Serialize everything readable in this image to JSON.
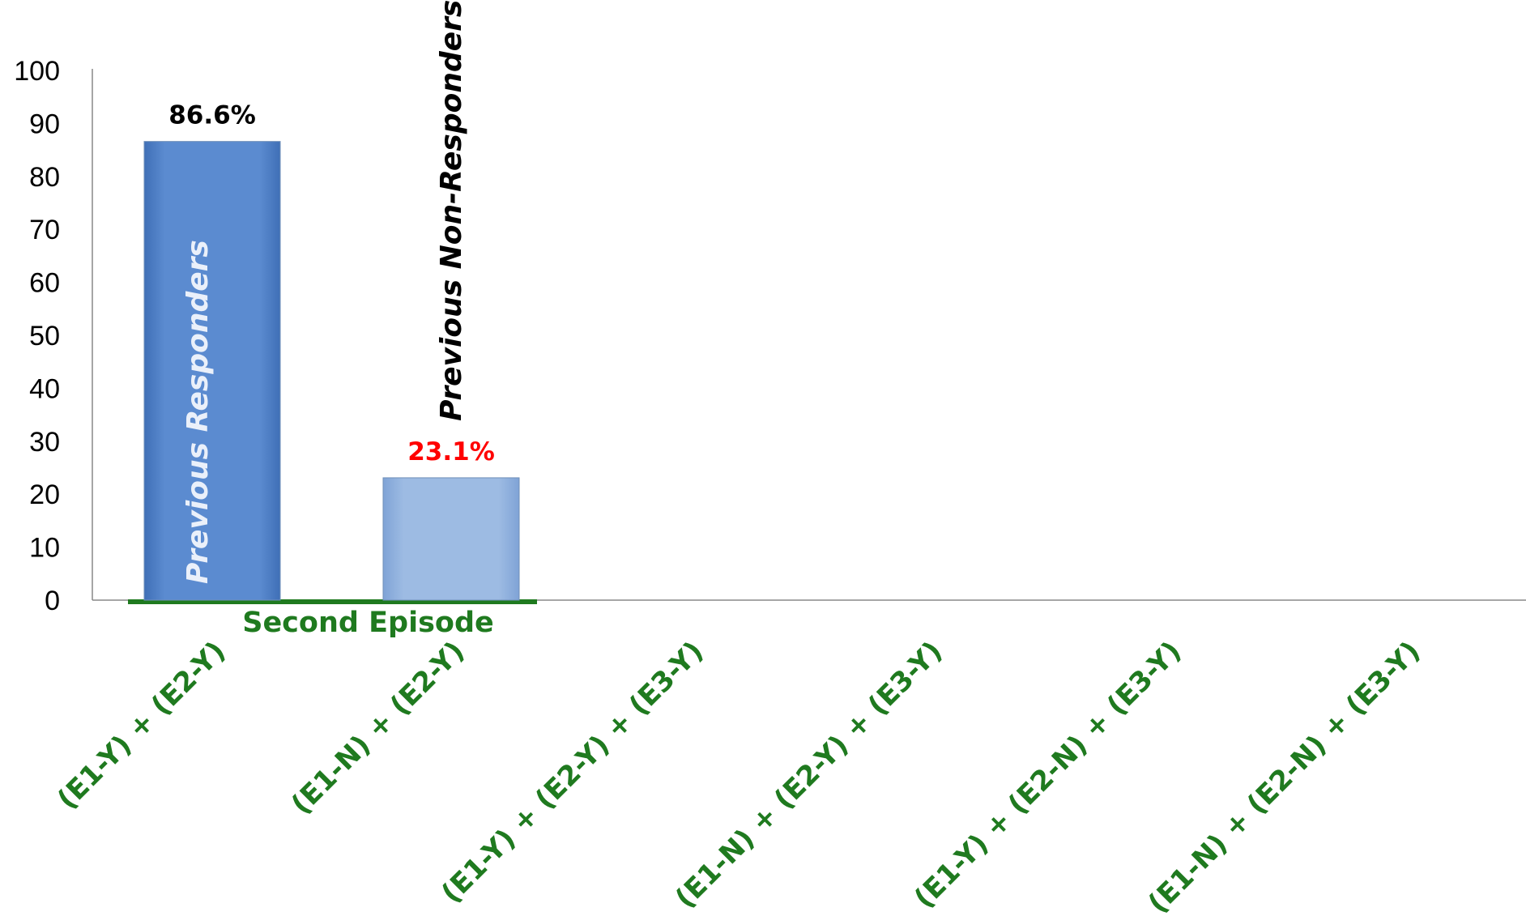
{
  "chart_data": {
    "type": "bar",
    "title": "",
    "xlabel": "",
    "ylabel": "",
    "ylim": [
      0,
      100
    ],
    "yticks": [
      0,
      10,
      20,
      30,
      40,
      50,
      60,
      70,
      80,
      90,
      100
    ],
    "grid": false,
    "categories": [
      "(E1-Y) + (E2-Y)",
      "(E1-N) + (E2-Y)",
      "(E1-Y) + (E2-Y) + (E3-Y)",
      "(E1-N) + (E2-Y) + (E3-Y)",
      "(E1-Y) + (E2-N) + (E3-Y)",
      "(E1-N) + (E2-N) + (E3-Y)"
    ],
    "values": [
      86.6,
      23.1,
      null,
      null,
      null,
      null
    ],
    "data_labels": [
      "86.6%",
      "23.1%",
      "",
      "",
      "",
      ""
    ],
    "data_label_colors": [
      "#000000",
      "#ff0000",
      "",
      "",
      "",
      ""
    ],
    "bar_colors": [
      "#5b8bd0",
      "#9dbbe3",
      "",
      "",
      "",
      ""
    ],
    "annotations": {
      "inside_bar_0": "Previous Responders",
      "above_bar_1": "Previous Non-Responders"
    },
    "group_label": "Second Episode",
    "colors": {
      "tick_label_x": "#1f7a1f",
      "group_line": "#1f7a1f",
      "group_text": "#1f7a1f",
      "inside_annot": "#eaf0fa",
      "above_annot": "#000000",
      "axis": "#888888"
    }
  }
}
